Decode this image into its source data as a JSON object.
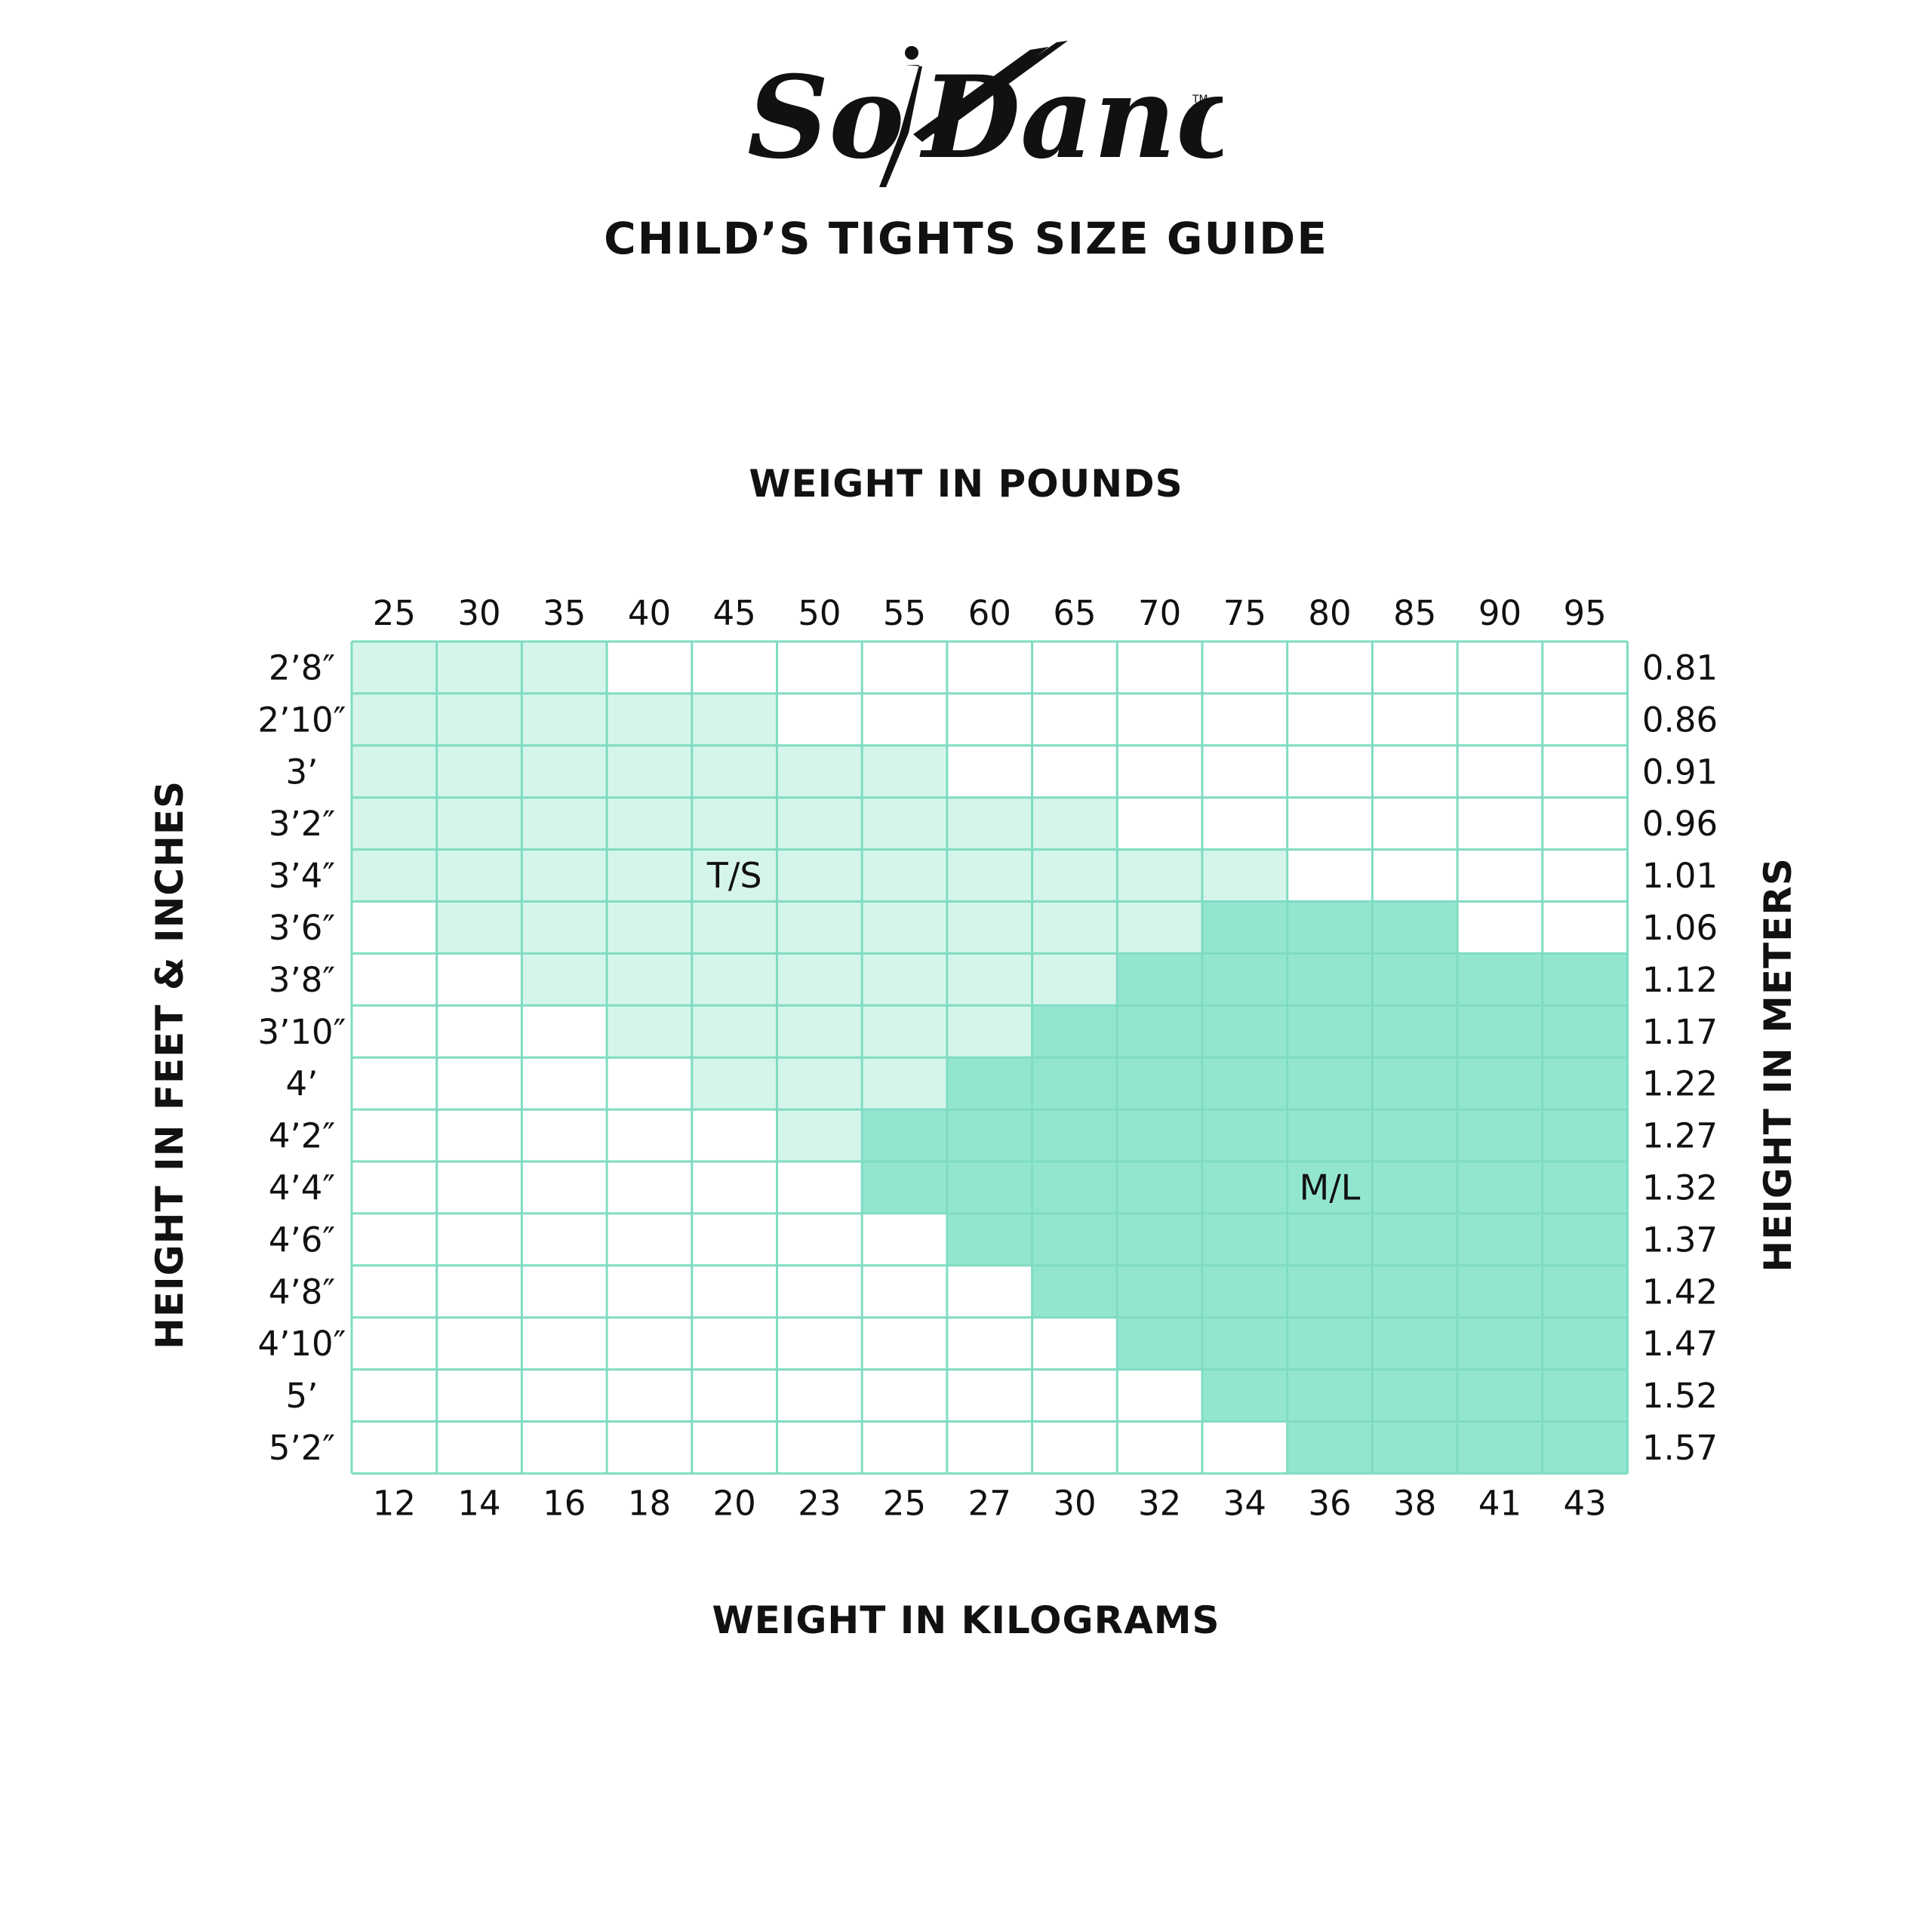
{
  "brand": {
    "logo_text": "SoDanca",
    "trademark": "TM"
  },
  "colors": {
    "ts_fill": "#d6f5ea",
    "ml_fill": "#92e6cf",
    "grid": "#7fdcc2",
    "empty_fill": "#ffffff"
  },
  "chart_data": {
    "type": "heatmap",
    "title": "CHILD’S TIGHTS SIZE GUIDE",
    "x_top_label": "WEIGHT IN POUNDS",
    "x_bottom_label": "WEIGHT IN KILOGRAMS",
    "y_left_label": "HEIGHT IN FEET & INCHES",
    "y_right_label": "HEIGHT IN METERS",
    "x_pounds": [
      "25",
      "30",
      "35",
      "40",
      "45",
      "50",
      "55",
      "60",
      "65",
      "70",
      "75",
      "80",
      "85",
      "90",
      "95"
    ],
    "x_kilograms": [
      "12",
      "14",
      "16",
      "18",
      "20",
      "23",
      "25",
      "27",
      "30",
      "32",
      "34",
      "36",
      "38",
      "41",
      "43"
    ],
    "y_feet_inches": [
      "2’8″",
      "2’10″",
      "3’",
      "3’2″",
      "3’4″",
      "3’6″",
      "3’8″",
      "3’10″",
      "4’",
      "4’2″",
      "4’4″",
      "4’6″",
      "4’8″",
      "4’10″",
      "5’",
      "5’2″"
    ],
    "y_meters": [
      "0.81",
      "0.86",
      "0.91",
      "0.96",
      "1.01",
      "1.06",
      "1.12",
      "1.17",
      "1.22",
      "1.27",
      "1.32",
      "1.37",
      "1.42",
      "1.47",
      "1.52",
      "1.57"
    ],
    "sizes": {
      "T": {
        "label": "T/S",
        "label_cell": [
          4,
          4
        ]
      },
      "M": {
        "label": "M/L",
        "label_cell": [
          10,
          11
        ]
      }
    },
    "grid": [
      "TTT............",
      "TTTTT..........",
      "TTTTTTT........",
      "TTTTTTTTT......",
      "TTTTTTTTTTT....",
      ".TTTTTTTTTMMM..",
      "..TTTTTTTMMMMMM",
      "...TTTTTMMMMMMM",
      "....TTTMMMMMMMM",
      ".....TMMMMMMMMM",
      "......MMMMMMMMM",
      ".......MMMMMMMM",
      "........MMMMMMM",
      ".........MMMMMM",
      "..........MMMMM",
      "...........MMMM"
    ]
  }
}
